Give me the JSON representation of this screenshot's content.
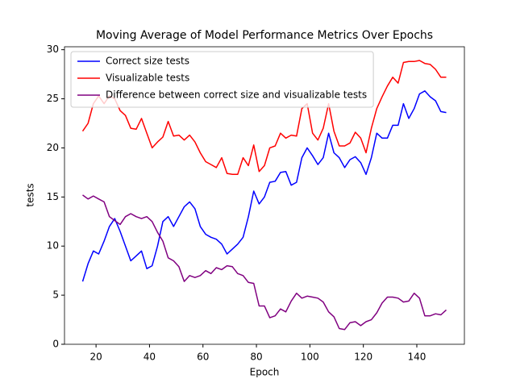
{
  "chart_data": {
    "type": "line",
    "title": "Moving Average of Model Performance Metrics Over Epochs",
    "xlabel": "Epoch",
    "ylabel": "tests",
    "x": [
      15,
      17,
      19,
      21,
      23,
      25,
      27,
      29,
      31,
      33,
      35,
      37,
      39,
      41,
      43,
      45,
      47,
      49,
      51,
      53,
      55,
      57,
      59,
      61,
      63,
      65,
      67,
      69,
      71,
      73,
      75,
      77,
      79,
      81,
      83,
      85,
      87,
      89,
      91,
      93,
      95,
      97,
      99,
      101,
      103,
      105,
      107,
      109,
      111,
      113,
      115,
      117,
      119,
      121,
      123,
      125,
      127,
      129,
      131,
      133,
      135,
      137,
      139,
      141,
      143,
      145,
      147,
      149,
      151
    ],
    "series": [
      {
        "name": "Correct size tests",
        "color": "#0000ff",
        "values": [
          6.4,
          8.2,
          9.5,
          9.2,
          10.5,
          12,
          12.8,
          11.5,
          10,
          8.5,
          9,
          9.5,
          7.7,
          8,
          10,
          12.5,
          13,
          12,
          13,
          14,
          14.5,
          13.8,
          12,
          11.2,
          10.9,
          10.7,
          10.2,
          9.2,
          9.7,
          10.2,
          10.9,
          13,
          15.6,
          14.3,
          15,
          16.5,
          16.6,
          17.5,
          17.6,
          16.2,
          16.5,
          19,
          20,
          19.2,
          18.3,
          19,
          21.5,
          19.5,
          19,
          18,
          18.8,
          19.1,
          18.5,
          17.3,
          19,
          21.5,
          21,
          21,
          22.3,
          22.3,
          24.5,
          23,
          24,
          25.5,
          25.8,
          25.2,
          24.8,
          23.7,
          23.6
        ]
      },
      {
        "name": "Visualizable tests",
        "color": "#ff0000",
        "values": [
          21.7,
          22.5,
          24.5,
          25.3,
          24.5,
          25.3,
          25,
          23.8,
          23.3,
          22,
          21.9,
          23,
          21.5,
          20,
          20.6,
          21.1,
          22.7,
          21.2,
          21.3,
          20.8,
          21.3,
          20.6,
          19.5,
          18.6,
          18.3,
          18,
          19,
          17.4,
          17.3,
          17.3,
          19,
          18.2,
          20.3,
          17.6,
          18.2,
          20,
          20.2,
          21.5,
          21,
          21.3,
          21.2,
          24,
          24.5,
          21.5,
          20.8,
          22,
          24.5,
          21.7,
          20.2,
          20.2,
          20.5,
          21.6,
          21,
          19.5,
          22,
          24,
          25.2,
          26.3,
          27.2,
          26.6,
          28.7,
          28.8,
          28.8,
          28.9,
          28.6,
          28.5,
          28,
          27.2,
          27.2
        ]
      },
      {
        "name": "Difference between correct size and visualizable tests",
        "color": "#800080",
        "values": [
          15.2,
          14.8,
          15.1,
          14.8,
          14.5,
          13,
          12.6,
          12.2,
          13,
          13.3,
          13,
          12.8,
          13,
          12.5,
          11.4,
          10.5,
          8.8,
          8.5,
          7.9,
          6.4,
          7,
          6.8,
          7,
          7.5,
          7.2,
          7.8,
          7.6,
          8,
          7.9,
          7.2,
          7,
          6.3,
          6.2,
          3.9,
          3.9,
          2.7,
          2.9,
          3.6,
          3.3,
          4.4,
          5.2,
          4.7,
          4.9,
          4.8,
          4.7,
          4.3,
          3.3,
          2.8,
          1.6,
          1.5,
          2.2,
          2.3,
          1.9,
          2.3,
          2.5,
          3.2,
          4.2,
          4.8,
          4.8,
          4.7,
          4.3,
          4.4,
          5.2,
          4.7,
          2.9,
          2.9,
          3.1,
          3,
          3.5
        ]
      }
    ],
    "xlim": [
      8.2,
      157.8
    ],
    "ylim": [
      0,
      30.3
    ],
    "xticks": [
      20,
      40,
      60,
      80,
      100,
      120,
      140
    ],
    "yticks": [
      0,
      5,
      10,
      15,
      20,
      25,
      30
    ],
    "grid": false,
    "legend": "upper left"
  }
}
